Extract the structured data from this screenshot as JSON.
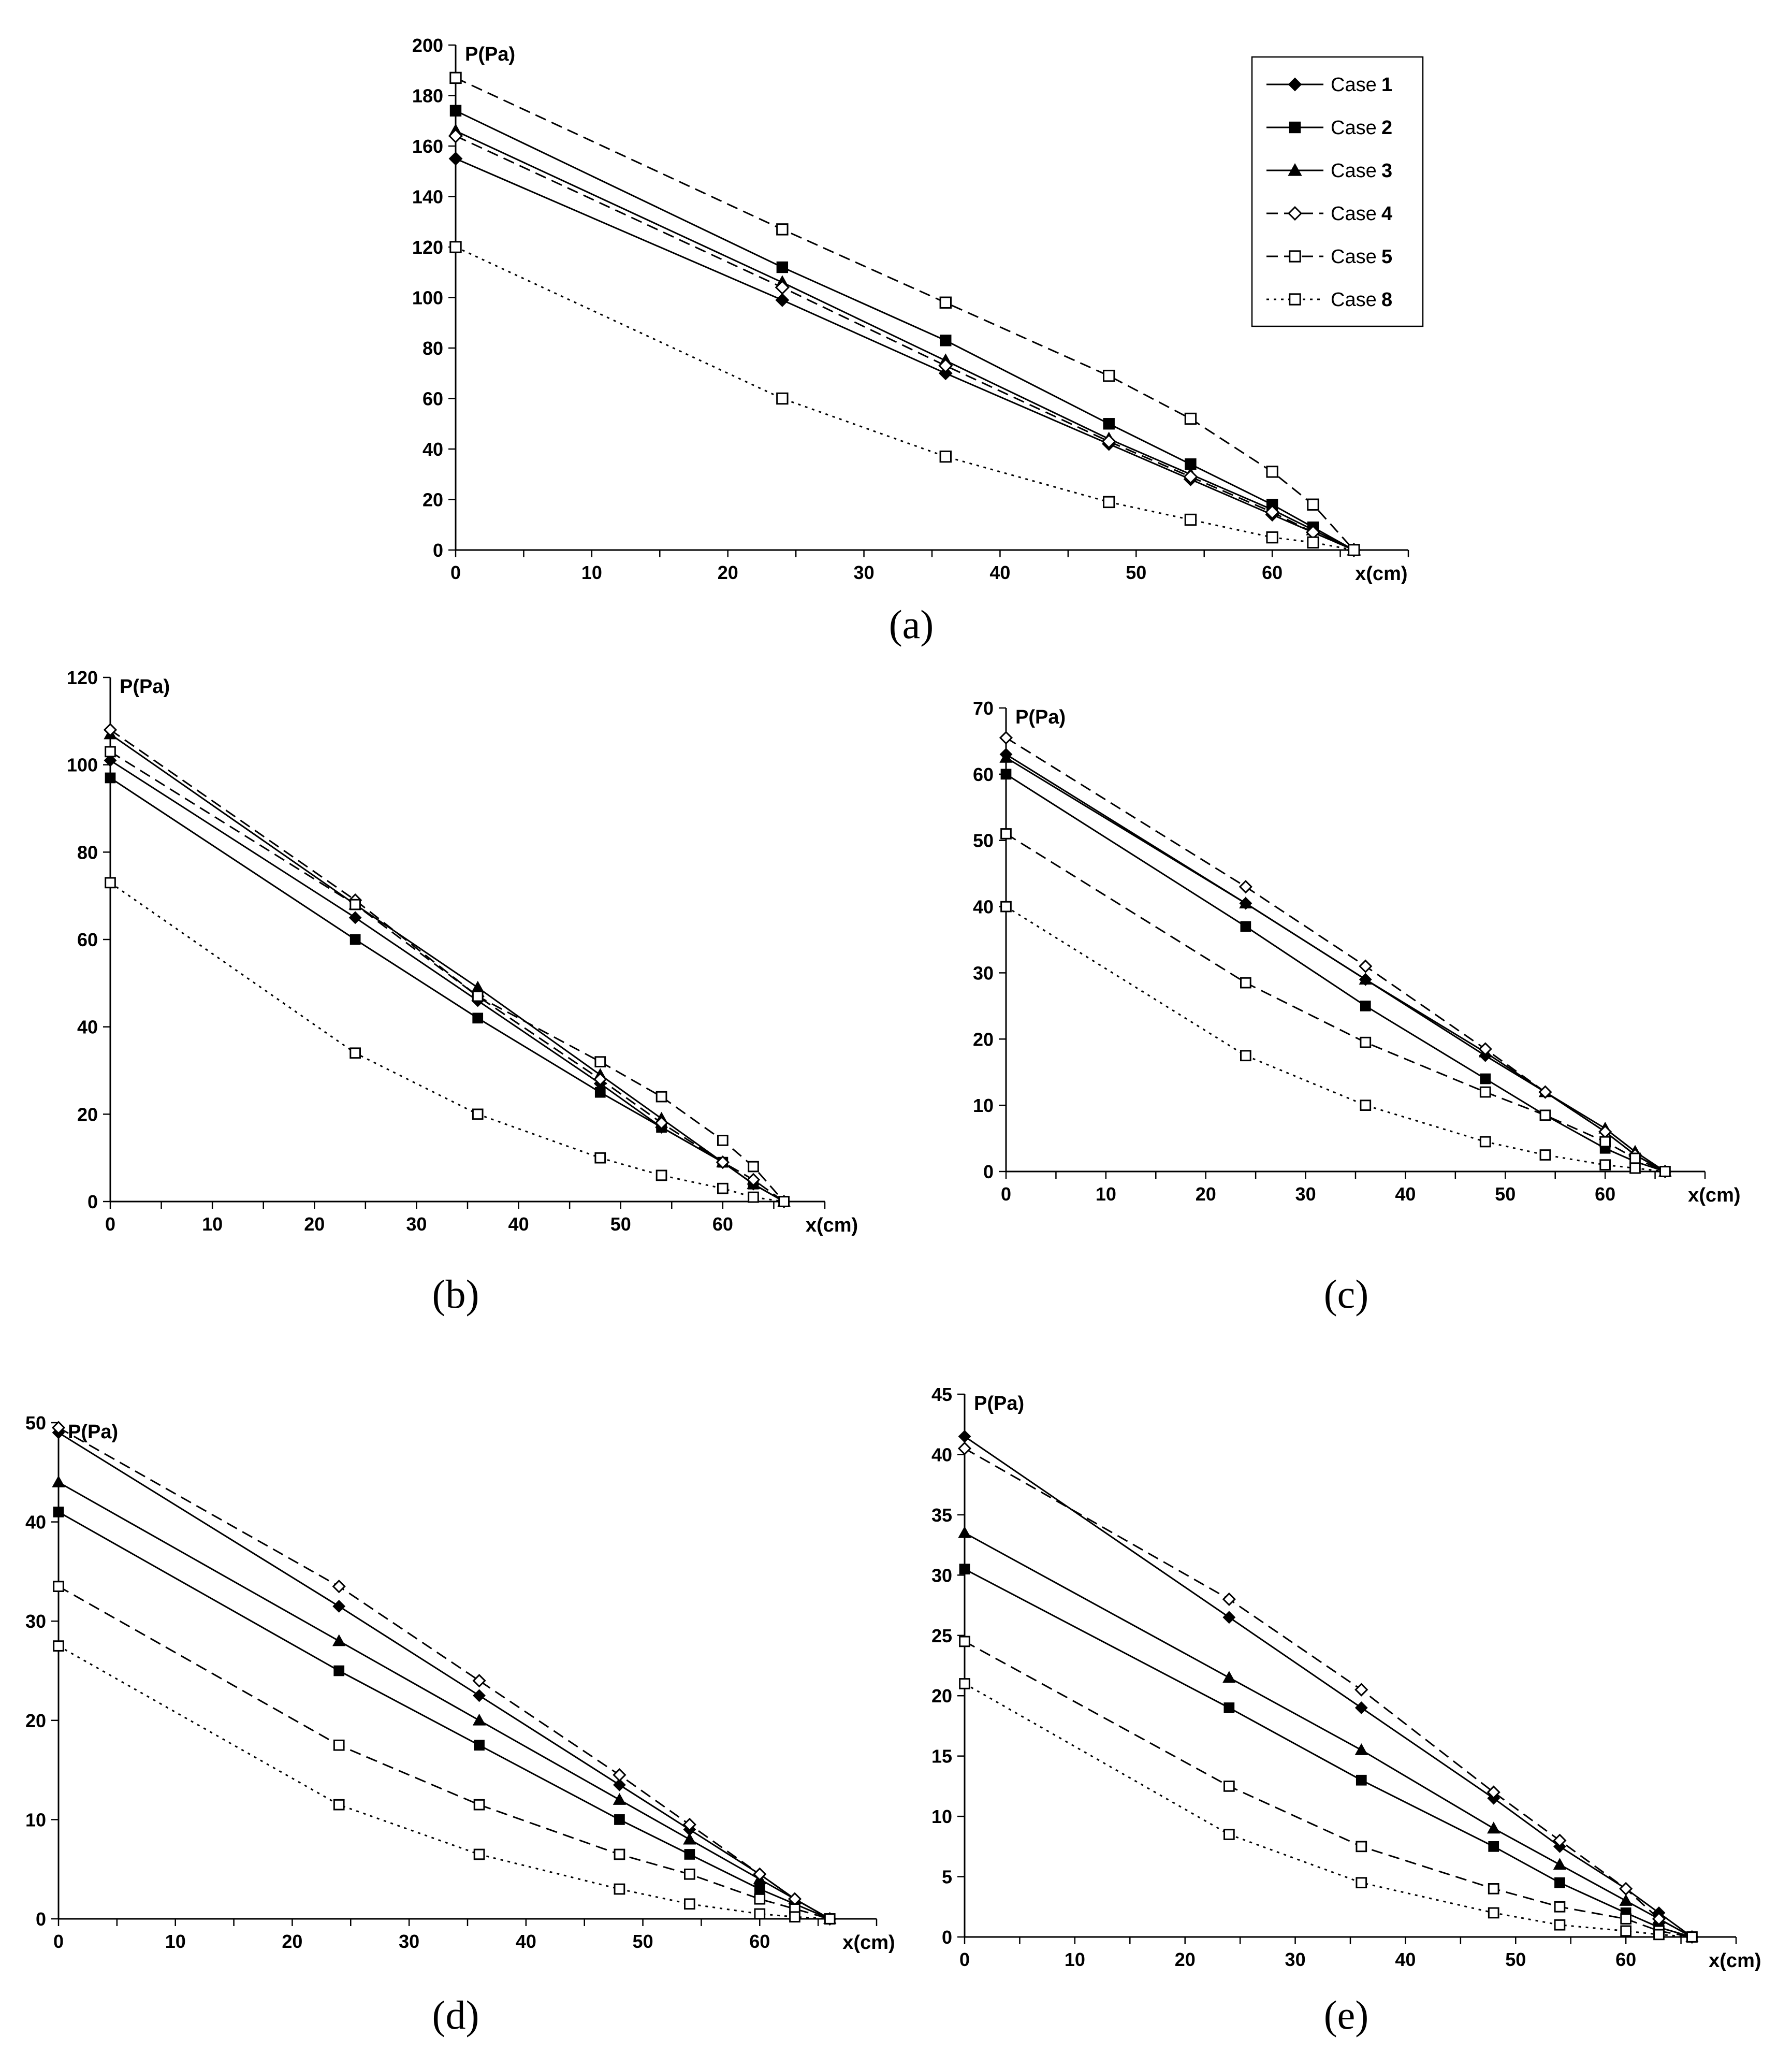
{
  "legend": {
    "prefix": "Case",
    "entries": [
      {
        "key": "c1",
        "number": "1"
      },
      {
        "key": "c2",
        "number": "2"
      },
      {
        "key": "c3",
        "number": "3"
      },
      {
        "key": "c4",
        "number": "4"
      },
      {
        "key": "c5",
        "number": "5"
      },
      {
        "key": "c8",
        "number": "8"
      }
    ]
  },
  "styles": {
    "c1": {
      "dash": "solid",
      "marker": "diamond-filled"
    },
    "c2": {
      "dash": "solid",
      "marker": "square-filled"
    },
    "c3": {
      "dash": "solid",
      "marker": "triangle-filled"
    },
    "c4": {
      "dash": "dashed",
      "marker": "diamond-open"
    },
    "c5": {
      "dash": "dashed",
      "marker": "square-open"
    },
    "c8": {
      "dash": "dotted",
      "marker": "square-open"
    }
  },
  "chart_data": [
    {
      "type": "line",
      "panel_label": "(a)",
      "ylabel": "P(Pa)",
      "xlabel": "x(cm)",
      "xlim": [
        0,
        70
      ],
      "ylim": [
        0,
        200
      ],
      "xticks": [
        0,
        10,
        20,
        30,
        40,
        50,
        60
      ],
      "yticks": [
        0,
        20,
        40,
        60,
        80,
        100,
        120,
        140,
        160,
        180,
        200
      ],
      "legend_position": "top-right",
      "x": [
        0,
        24,
        36,
        48,
        54,
        60,
        63,
        66
      ],
      "series": [
        {
          "key": "c1",
          "values": [
            155,
            99,
            70,
            42,
            28,
            14,
            7,
            0
          ]
        },
        {
          "key": "c2",
          "values": [
            174,
            112,
            83,
            50,
            34,
            18,
            9,
            0
          ]
        },
        {
          "key": "c3",
          "values": [
            166,
            106,
            75,
            44,
            30,
            16,
            8,
            0
          ]
        },
        {
          "key": "c4",
          "values": [
            164,
            104,
            73,
            43,
            29,
            15,
            7,
            0
          ]
        },
        {
          "key": "c5",
          "values": [
            187,
            127,
            98,
            69,
            52,
            31,
            18,
            0
          ]
        },
        {
          "key": "c8",
          "values": [
            120,
            60,
            37,
            19,
            12,
            5,
            3,
            0
          ]
        }
      ]
    },
    {
      "type": "line",
      "panel_label": "(b)",
      "ylabel": "P(Pa)",
      "xlabel": "x(cm)",
      "xlim": [
        0,
        70
      ],
      "ylim": [
        0,
        120
      ],
      "xticks": [
        0,
        10,
        20,
        30,
        40,
        50,
        60
      ],
      "yticks": [
        0,
        20,
        40,
        60,
        80,
        100,
        120
      ],
      "x": [
        0,
        24,
        36,
        48,
        54,
        60,
        63,
        66
      ],
      "series": [
        {
          "key": "c1",
          "values": [
            101,
            65,
            46,
            27,
            17,
            9,
            4,
            0
          ]
        },
        {
          "key": "c2",
          "values": [
            97,
            60,
            42,
            25,
            17,
            9,
            4,
            0
          ]
        },
        {
          "key": "c3",
          "values": [
            107,
            68,
            49,
            29,
            19,
            9,
            4,
            0
          ]
        },
        {
          "key": "c4",
          "values": [
            108,
            69,
            47,
            28,
            18,
            9,
            5,
            0
          ]
        },
        {
          "key": "c5",
          "values": [
            103,
            68,
            47,
            32,
            24,
            14,
            8,
            0
          ]
        },
        {
          "key": "c8",
          "values": [
            73,
            34,
            20,
            10,
            6,
            3,
            1,
            0
          ]
        }
      ]
    },
    {
      "type": "line",
      "panel_label": "(c)",
      "ylabel": "P(Pa)",
      "xlabel": "x(cm)",
      "xlim": [
        0,
        70
      ],
      "ylim": [
        0,
        70
      ],
      "xticks": [
        0,
        10,
        20,
        30,
        40,
        50,
        60
      ],
      "yticks": [
        0,
        10,
        20,
        30,
        40,
        50,
        60,
        70
      ],
      "x": [
        0,
        24,
        36,
        48,
        54,
        60,
        63,
        66
      ],
      "series": [
        {
          "key": "c1",
          "values": [
            63,
            40.5,
            29,
            17.5,
            12,
            6,
            2.5,
            0
          ]
        },
        {
          "key": "c2",
          "values": [
            60,
            37,
            25,
            14,
            8.5,
            3.5,
            1.5,
            0
          ]
        },
        {
          "key": "c3",
          "values": [
            62.5,
            40.5,
            29,
            18,
            12,
            6.5,
            3,
            0
          ]
        },
        {
          "key": "c4",
          "values": [
            65.5,
            43,
            31,
            18.5,
            12,
            6,
            2.5,
            0
          ]
        },
        {
          "key": "c5",
          "values": [
            51,
            28.5,
            19.5,
            12,
            8.5,
            4.5,
            2,
            0
          ]
        },
        {
          "key": "c8",
          "values": [
            40,
            17.5,
            10,
            4.5,
            2.5,
            1,
            0.5,
            0
          ]
        }
      ]
    },
    {
      "type": "line",
      "panel_label": "(d)",
      "ylabel": "P(Pa)",
      "xlabel": "x(cm)",
      "xlim": [
        0,
        70
      ],
      "ylim": [
        0,
        50
      ],
      "xticks": [
        0,
        10,
        20,
        30,
        40,
        50,
        60
      ],
      "yticks": [
        0,
        10,
        20,
        30,
        40,
        50
      ],
      "x": [
        0,
        24,
        36,
        48,
        54,
        60,
        63,
        66
      ],
      "series": [
        {
          "key": "c1",
          "values": [
            49,
            31.5,
            22.5,
            13.5,
            9,
            4.5,
            2,
            0
          ]
        },
        {
          "key": "c2",
          "values": [
            41,
            25,
            17.5,
            10,
            6.5,
            3,
            1.5,
            0
          ]
        },
        {
          "key": "c3",
          "values": [
            44,
            28,
            20,
            12,
            8,
            4,
            2,
            0
          ]
        },
        {
          "key": "c4",
          "values": [
            49.5,
            33.5,
            24,
            14.5,
            9.5,
            4.5,
            2,
            0
          ]
        },
        {
          "key": "c5",
          "values": [
            33.5,
            17.5,
            11.5,
            6.5,
            4.5,
            2,
            1,
            0
          ]
        },
        {
          "key": "c8",
          "values": [
            27.5,
            11.5,
            6.5,
            3,
            1.5,
            0.5,
            0.2,
            0
          ]
        }
      ]
    },
    {
      "type": "line",
      "panel_label": "(e)",
      "ylabel": "P(Pa)",
      "xlabel": "x(cm)",
      "xlim": [
        0,
        70
      ],
      "ylim": [
        0,
        45
      ],
      "xticks": [
        0,
        10,
        20,
        30,
        40,
        50,
        60
      ],
      "yticks": [
        0,
        5,
        10,
        15,
        20,
        25,
        30,
        35,
        40,
        45
      ],
      "x": [
        0,
        24,
        36,
        48,
        54,
        60,
        63,
        66
      ],
      "series": [
        {
          "key": "c1",
          "values": [
            41.5,
            26.5,
            19,
            11.5,
            7.5,
            4,
            2,
            0
          ]
        },
        {
          "key": "c2",
          "values": [
            30.5,
            19,
            13,
            7.5,
            4.5,
            2,
            0.8,
            0
          ]
        },
        {
          "key": "c3",
          "values": [
            33.5,
            21.5,
            15.5,
            9,
            6,
            3,
            1.5,
            0
          ]
        },
        {
          "key": "c4",
          "values": [
            40.5,
            28,
            20.5,
            12,
            8,
            4,
            1.5,
            0
          ]
        },
        {
          "key": "c5",
          "values": [
            24.5,
            12.5,
            7.5,
            4,
            2.5,
            1.5,
            0.5,
            0
          ]
        },
        {
          "key": "c8",
          "values": [
            21,
            8.5,
            4.5,
            2,
            1,
            0.5,
            0.2,
            0
          ]
        }
      ]
    }
  ]
}
